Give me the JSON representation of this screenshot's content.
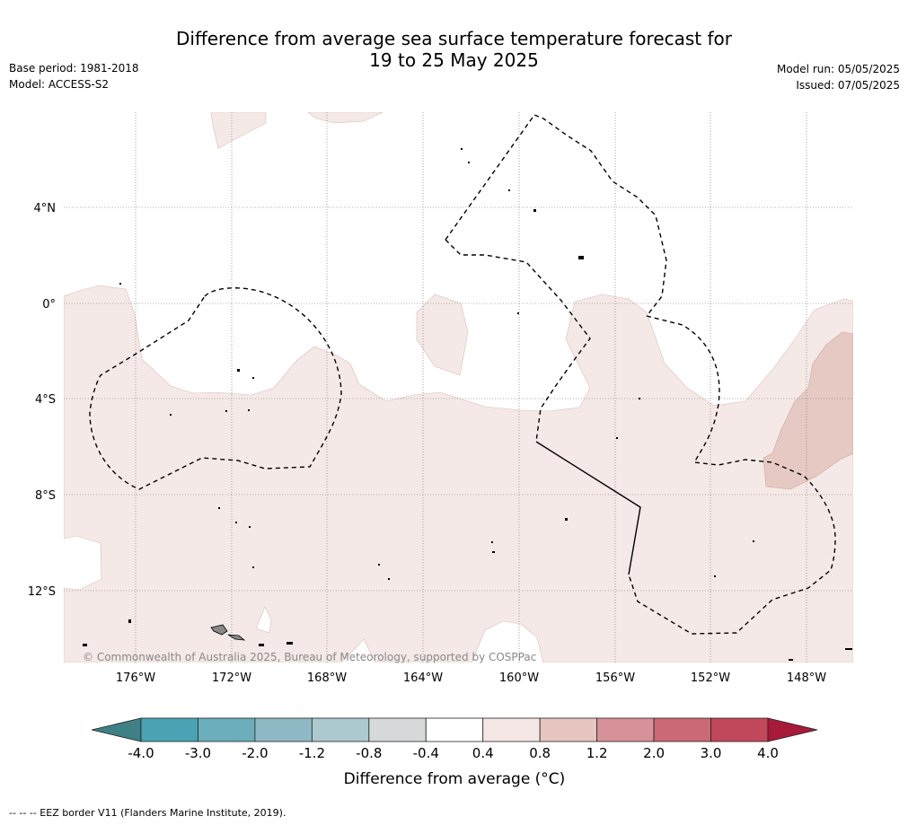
{
  "title": {
    "line1": "Difference from average sea surface temperature forecast for",
    "line2": "19 to 25 May 2025"
  },
  "meta": {
    "base_period": "Base period: 1981-2018",
    "model": "Model: ACCESS-S2",
    "model_run": "Model run: 05/05/2025",
    "issued": "Issued: 07/05/2025"
  },
  "map": {
    "lat_labels": [
      "4°N",
      "0°",
      "4°S",
      "8°S",
      "12°S"
    ],
    "lon_labels": [
      "176°W",
      "172°W",
      "168°W",
      "164°W",
      "160°W",
      "156°W",
      "152°W",
      "148°W"
    ],
    "copyright": "© Commonwealth of Australia 2025, Bureau of Meteorology, supported by COSPPac"
  },
  "colorbar": {
    "ticks": [
      "-4.0",
      "-3.0",
      "-2.0",
      "-1.2",
      "-0.8",
      "-0.4",
      "0.4",
      "0.8",
      "1.2",
      "2.0",
      "3.0",
      "4.0"
    ],
    "colors": [
      "#3f7f86",
      "#4aa3b4",
      "#6caebb",
      "#8fbac5",
      "#abc9cf",
      "#d6d9d9",
      "#ffffff",
      "#f5e7e5",
      "#e7c6c2",
      "#d79299",
      "#cb6a76",
      "#c1485a",
      "#a8193a"
    ],
    "label": "Difference from average (°C)"
  },
  "footnote": "--  --  -- EEZ border V11 (Flanders Marine Institute, 2019)."
}
